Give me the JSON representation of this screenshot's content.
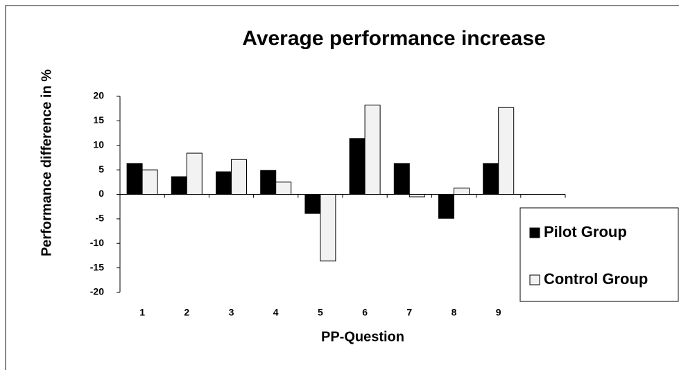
{
  "chart_data": {
    "type": "bar",
    "title": "Average performance increase",
    "x_label": "PP-Question",
    "y_label": "Performance difference in %",
    "categories": [
      "1",
      "2",
      "3",
      "4",
      "5",
      "6",
      "7",
      "8",
      "9",
      null
    ],
    "series": [
      {
        "name": "Pilot Group",
        "color": "#000000",
        "values": [
          6.3,
          3.6,
          4.6,
          4.9,
          -3.9,
          11.4,
          6.3,
          -4.9,
          6.3,
          null
        ]
      },
      {
        "name": "Control Group",
        "color": "#f2f2f2",
        "values": [
          5.0,
          8.4,
          7.1,
          2.5,
          -13.6,
          18.2,
          -0.5,
          1.3,
          17.7,
          null
        ]
      }
    ],
    "ylim": [
      -20,
      20
    ],
    "yticks": [
      20,
      15,
      10,
      5,
      0,
      -5,
      -10,
      -15,
      -20
    ],
    "grid": false,
    "legend": "right"
  }
}
